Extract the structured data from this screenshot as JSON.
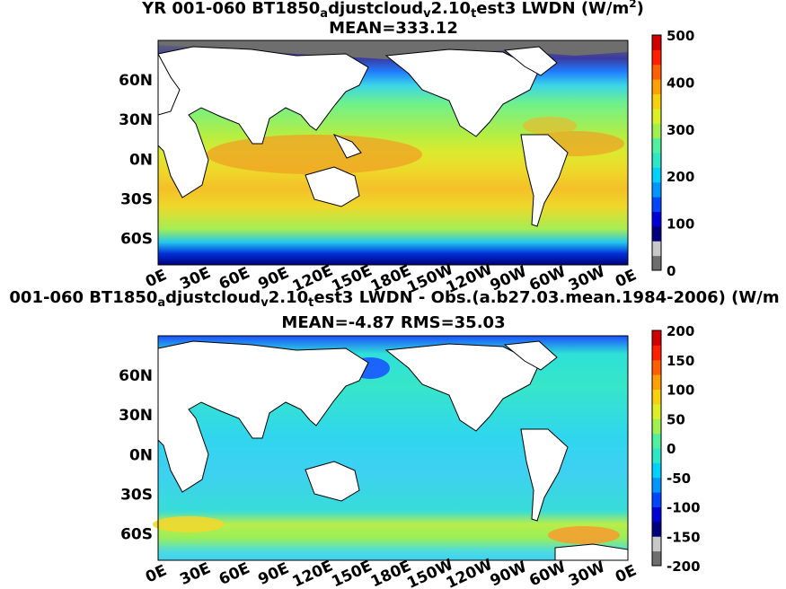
{
  "panels": [
    {
      "title_parts": [
        "YR 001-060 BT1850",
        "a",
        "djustcloud",
        "v",
        "2.10",
        "t",
        "est3 LWDN (W/m",
        "2",
        ")"
      ],
      "subtitle": "MEAN=333.12",
      "colorbar_ticks": [
        "500",
        "400",
        "300",
        "200",
        "100",
        "0"
      ]
    },
    {
      "title_parts": [
        "001-060 BT1850",
        "a",
        "djustcloud",
        "v",
        "2.10",
        "t",
        "est3 LWDN - Obs.(a.b27.03.mean.1984-2006) (W/m"
      ],
      "subtitle": "MEAN=-4.87 RMS=35.03",
      "colorbar_ticks": [
        "200",
        "150",
        "100",
        "50",
        "0",
        "-50",
        "-100",
        "-150",
        "-200"
      ]
    }
  ],
  "lat_labels": [
    "60N",
    "30N",
    "0N",
    "30S",
    "60S"
  ],
  "lon_labels": [
    "0E",
    "30E",
    "60E",
    "90E",
    "120E",
    "150E",
    "180E",
    "150W",
    "120W",
    "90W",
    "60W",
    "30W",
    "0E"
  ],
  "colors": {
    "land": "#ffffff",
    "missing": "#6e6e6e",
    "colormap": [
      "#6e6e6e",
      "#c8c8c8",
      "#00007d",
      "#0000d7",
      "#0046ff",
      "#0096ff",
      "#00d2ff",
      "#2ee6c8",
      "#50f0a0",
      "#a0f050",
      "#dcf028",
      "#f8d010",
      "#ffa000",
      "#ff6000",
      "#ff2000",
      "#d00000"
    ]
  },
  "chart_data": [
    {
      "type": "heatmap",
      "title": "YR 001-060 BT1850adjustcloudv2.10test3 LWDN (W/m2)",
      "subtitle": "MEAN=333.12",
      "colorbar_range": [
        0,
        500
      ],
      "colorbar_ticks": [
        0,
        100,
        200,
        300,
        400,
        500
      ],
      "mean": 333.12,
      "x_ticks": [
        "0E",
        "30E",
        "60E",
        "90E",
        "120E",
        "150E",
        "180E",
        "150W",
        "120W",
        "90W",
        "60W",
        "30W",
        "0E"
      ],
      "y_ticks": [
        "60N",
        "30N",
        "0N",
        "30S",
        "60S"
      ]
    },
    {
      "type": "heatmap",
      "title": "001-060 BT1850adjustcloudv2.10test3 LWDN - Obs.(a.b27.03.mean.1984-2006) (W/m",
      "subtitle": "MEAN=-4.87 RMS=35.03",
      "colorbar_range": [
        -200,
        200
      ],
      "colorbar_ticks": [
        -200,
        -150,
        -100,
        -50,
        0,
        50,
        100,
        150,
        200
      ],
      "mean": -4.87,
      "rms": 35.03,
      "x_ticks": [
        "0E",
        "30E",
        "60E",
        "90E",
        "120E",
        "150E",
        "180E",
        "150W",
        "120W",
        "90W",
        "60W",
        "30W",
        "0E"
      ],
      "y_ticks": [
        "60N",
        "30N",
        "0N",
        "30S",
        "60S"
      ]
    }
  ]
}
